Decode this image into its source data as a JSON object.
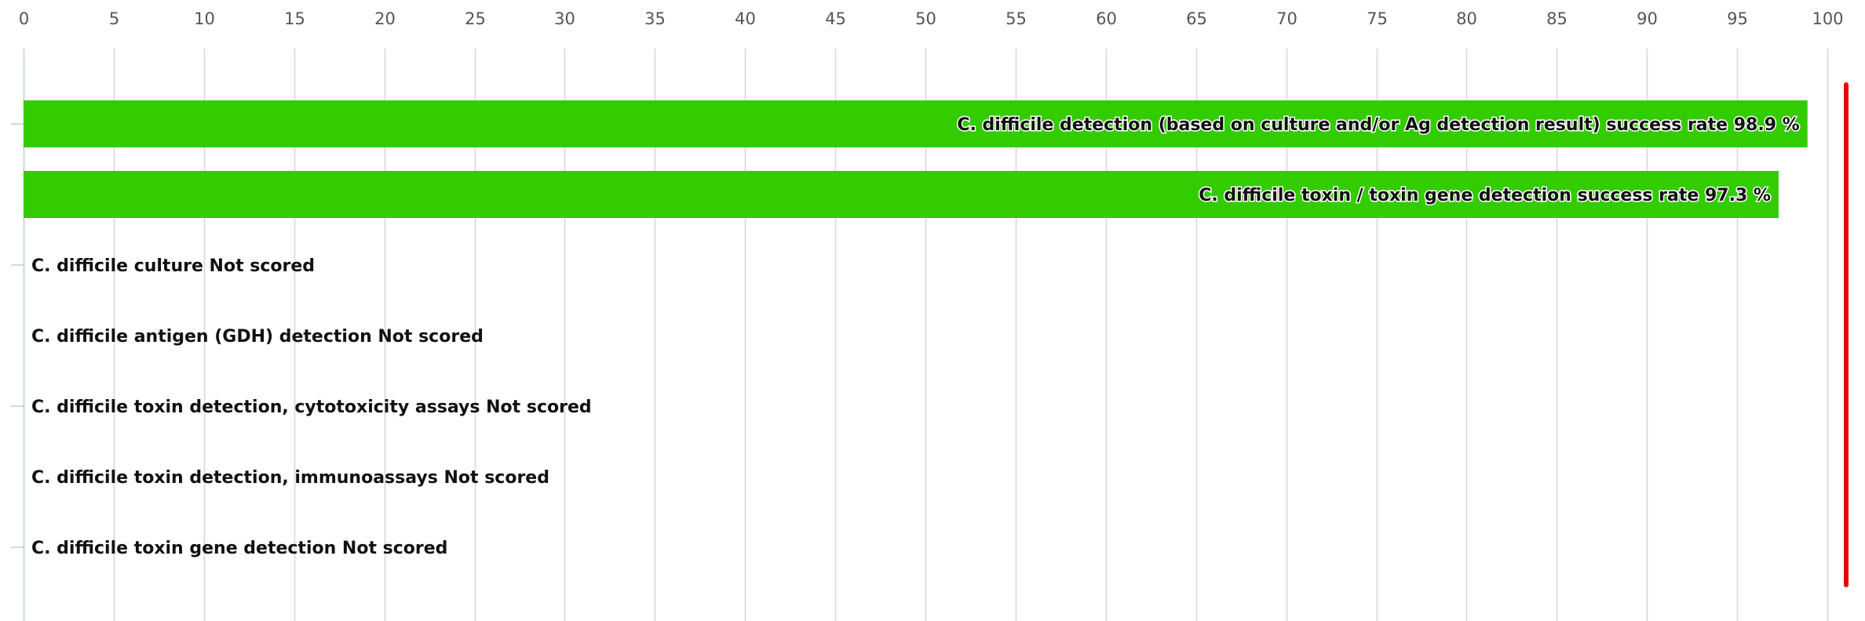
{
  "chart_data": {
    "type": "bar",
    "orientation": "horizontal",
    "xlim": [
      0,
      100
    ],
    "x_ticks": [
      0,
      5,
      10,
      15,
      20,
      25,
      30,
      35,
      40,
      45,
      50,
      55,
      60,
      65,
      70,
      75,
      80,
      85,
      90,
      95,
      100
    ],
    "tick_labels": [
      "0",
      "5",
      "10",
      "15",
      "20",
      "25",
      "30",
      "35",
      "40",
      "45",
      "50",
      "55",
      "60",
      "65",
      "70",
      "75",
      "80",
      "85",
      "90",
      "95",
      "100"
    ],
    "grid": true,
    "bar_color": "#33cc00",
    "target_line_color": "#ee0000",
    "target_value": 100,
    "categories": [
      "C. difficile detection (based on culture and/or Ag detection result) success rate",
      "C. difficile toxin / toxin gene detection success rate",
      "C. difficile culture",
      "C. difficile antigen (GDH) detection",
      "C. difficile toxin detection, cytotoxicity assays",
      "C. difficile toxin detection, immunoassays",
      "C. difficile toxin gene detection"
    ],
    "values": [
      98.9,
      97.3,
      null,
      null,
      null,
      null,
      null
    ],
    "labels": [
      "C. difficile detection (based on culture and/or Ag detection result) success rate 98.9 %",
      "C. difficile toxin / toxin gene detection success rate 97.3 %",
      "C. difficile culture Not scored",
      "C. difficile antigen (GDH) detection Not scored",
      "C. difficile toxin detection, cytotoxicity assays Not scored",
      "C. difficile toxin detection, immunoassays Not scored",
      "C. difficile toxin gene detection Not scored"
    ]
  }
}
